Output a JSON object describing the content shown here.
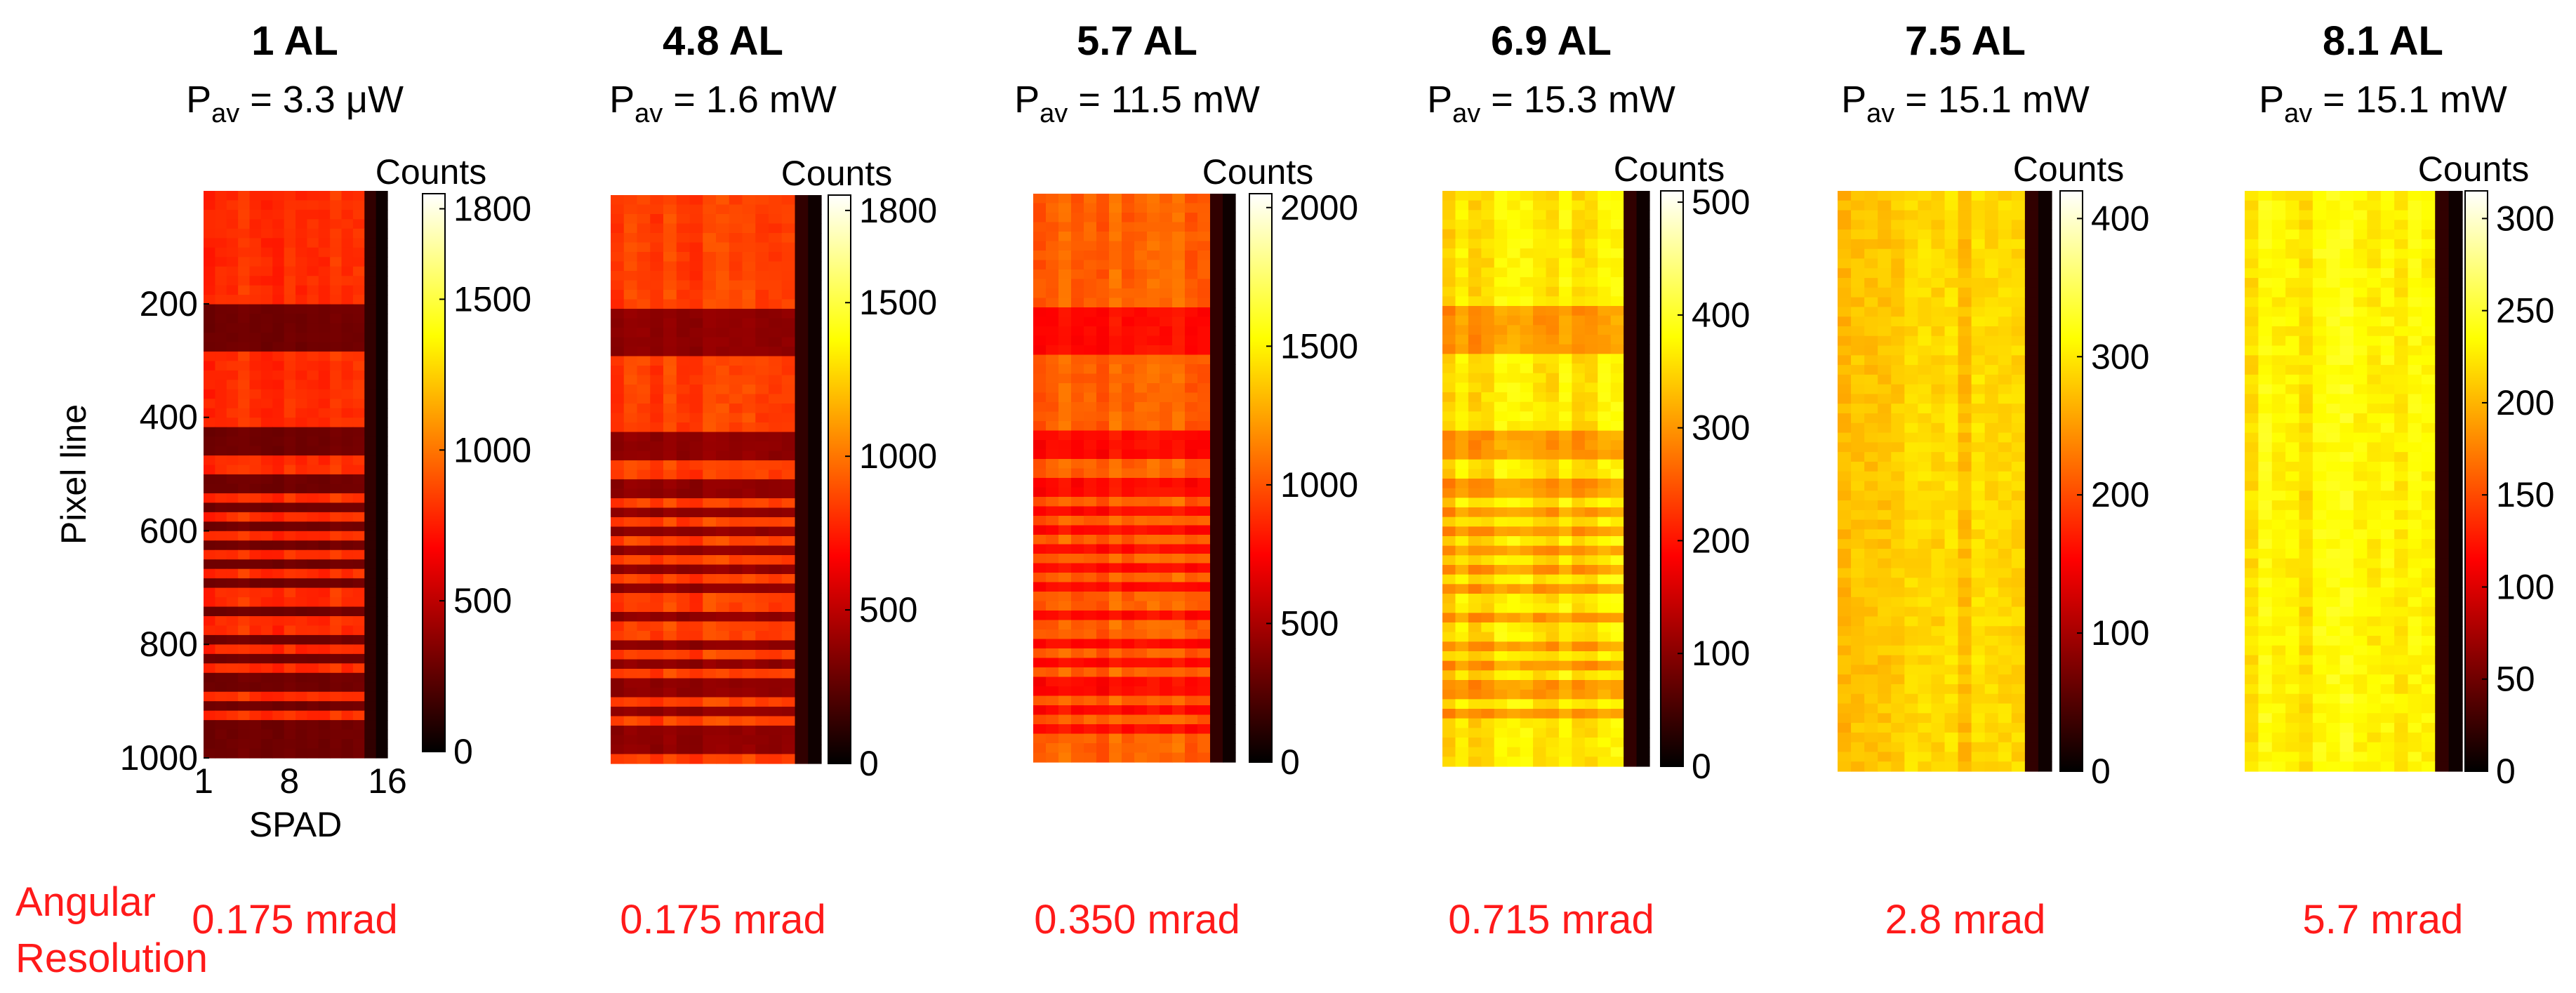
{
  "figure": {
    "resolution_label_line1": "Angular",
    "resolution_label_line2": "Resolution",
    "resolution_color": "#ff1a1a"
  },
  "chart_data": [
    {
      "type": "heatmap",
      "title": "1 AL",
      "power_prefix": "P",
      "power_sub": "av",
      "power_value": " = 3.3 μW",
      "colorbar_label": "Counts",
      "colorbar_ticks": [
        0,
        500,
        1000,
        1500,
        1800
      ],
      "colorbar_range": [
        0,
        1850
      ],
      "xlabel": "SPAD",
      "xticks": [
        1,
        8,
        16
      ],
      "ylabel": "Pixel line",
      "yticks": [
        200,
        400,
        600,
        800,
        1000
      ],
      "ylim": [
        1,
        1000
      ],
      "xlim": [
        1,
        16
      ],
      "dark_bands": [
        [
          195,
          290
        ],
        [
          415,
          470
        ],
        [
          505,
          530
        ],
        [
          545,
          570
        ],
        [
          590,
          605
        ],
        [
          620,
          635
        ],
        [
          650,
          665
        ],
        [
          680,
          695
        ],
        [
          710,
          720
        ],
        [
          735,
          745
        ],
        [
          760,
          775
        ],
        [
          790,
          800
        ],
        [
          815,
          830
        ],
        [
          850,
          860
        ],
        [
          875,
          890
        ],
        [
          905,
          915
        ],
        [
          930,
          945
        ],
        [
          955,
          1000
        ]
      ],
      "base_counts": 800,
      "band_counts": 300,
      "angular_resolution": "0.175 mrad"
    },
    {
      "type": "heatmap",
      "title": "4.8 AL",
      "power_prefix": "P",
      "power_sub": "av",
      "power_value": " = 1.6 mW",
      "colorbar_label": "Counts",
      "colorbar_ticks": [
        0,
        500,
        1000,
        1500,
        1800
      ],
      "colorbar_range": [
        0,
        1850
      ],
      "ylim": [
        1,
        1000
      ],
      "xlim": [
        1,
        16
      ],
      "dark_bands": [
        [
          195,
          290
        ],
        [
          415,
          470
        ],
        [
          505,
          530
        ],
        [
          545,
          570
        ],
        [
          590,
          605
        ],
        [
          620,
          635
        ],
        [
          650,
          665
        ],
        [
          680,
          695
        ],
        [
          710,
          720
        ],
        [
          735,
          745
        ],
        [
          760,
          775
        ],
        [
          790,
          800
        ],
        [
          815,
          830
        ],
        [
          850,
          860
        ],
        [
          875,
          890
        ],
        [
          905,
          915
        ],
        [
          930,
          945
        ],
        [
          955,
          985
        ]
      ],
      "base_counts": 850,
      "band_counts": 380,
      "angular_resolution": "0.175 mrad"
    },
    {
      "type": "heatmap",
      "title": "5.7 AL",
      "power_prefix": "P",
      "power_sub": "av",
      "power_value": " = 11.5 mW",
      "colorbar_label": "Counts",
      "colorbar_ticks": [
        0,
        500,
        1000,
        1500,
        2000
      ],
      "colorbar_range": [
        0,
        2050
      ],
      "ylim": [
        1,
        1000
      ],
      "xlim": [
        1,
        16
      ],
      "dark_bands": [
        [
          195,
          290
        ],
        [
          415,
          470
        ],
        [
          505,
          530
        ],
        [
          545,
          570
        ],
        [
          590,
          605
        ],
        [
          620,
          635
        ],
        [
          650,
          665
        ],
        [
          680,
          695
        ],
        [
          710,
          720
        ],
        [
          735,
          745
        ],
        [
          760,
          775
        ],
        [
          790,
          800
        ],
        [
          815,
          830
        ],
        [
          850,
          860
        ],
        [
          875,
          890
        ],
        [
          905,
          915
        ],
        [
          930,
          945
        ]
      ],
      "base_counts": 1050,
      "band_counts": 780,
      "angular_resolution": "0.350 mrad"
    },
    {
      "type": "heatmap",
      "title": "6.9 AL",
      "power_prefix": "P",
      "power_sub": "av",
      "power_value": " = 15.3 mW",
      "colorbar_label": "Counts",
      "colorbar_ticks": [
        0,
        100,
        200,
        300,
        400,
        500
      ],
      "colorbar_range": [
        0,
        510
      ],
      "ylim": [
        1,
        1000
      ],
      "xlim": [
        1,
        16
      ],
      "dark_bands": [
        [
          195,
          290
        ],
        [
          415,
          470
        ],
        [
          505,
          530
        ],
        [
          545,
          570
        ],
        [
          590,
          605
        ],
        [
          620,
          635
        ],
        [
          650,
          665
        ],
        [
          680,
          695
        ],
        [
          710,
          720
        ],
        [
          735,
          745
        ],
        [
          760,
          775
        ],
        [
          790,
          800
        ],
        [
          815,
          830
        ],
        [
          850,
          860
        ],
        [
          875,
          890
        ],
        [
          905,
          915
        ]
      ],
      "base_counts": 360,
      "band_counts": 300,
      "angular_resolution": "0.715 mrad"
    },
    {
      "type": "heatmap",
      "title": "7.5 AL",
      "power_prefix": "P",
      "power_sub": "av",
      "power_value": " = 15.1 mW",
      "colorbar_label": "Counts",
      "colorbar_ticks": [
        0,
        100,
        200,
        300,
        400
      ],
      "colorbar_range": [
        0,
        420
      ],
      "ylim": [
        1,
        1000
      ],
      "xlim": [
        1,
        16
      ],
      "dark_bands": [],
      "base_counts": 280,
      "band_counts": 260,
      "angular_resolution": "2.8 mrad"
    },
    {
      "type": "heatmap",
      "title": "8.1 AL",
      "power_prefix": "P",
      "power_sub": "av",
      "power_value": " = 15.1 mW",
      "colorbar_label": "Counts",
      "colorbar_ticks": [
        0,
        50,
        100,
        150,
        200,
        250,
        300
      ],
      "colorbar_range": [
        0,
        315
      ],
      "ylim": [
        1,
        1000
      ],
      "xlim": [
        1,
        16
      ],
      "dark_bands": [],
      "base_counts": 230,
      "band_counts": 220,
      "angular_resolution": "5.7 mrad"
    }
  ]
}
